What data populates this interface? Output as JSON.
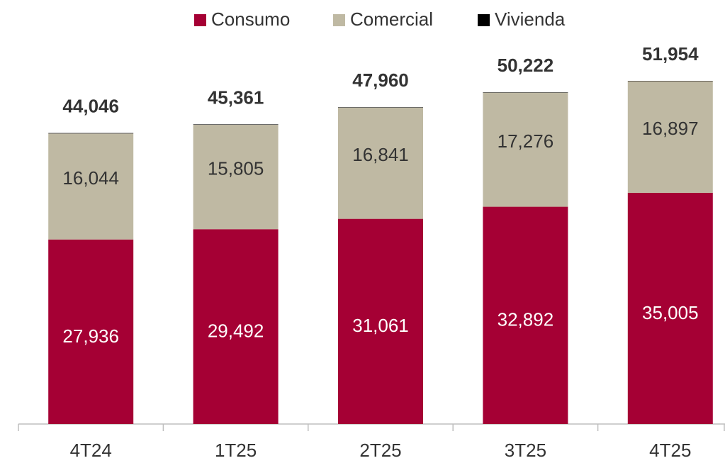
{
  "chart_data": {
    "type": "stacked_bar",
    "categories": [
      "4T24",
      "1T25",
      "2T25",
      "3T25",
      "4T25"
    ],
    "series": [
      {
        "name": "Consumo",
        "color": "#a50034",
        "label_color": "#ffffff",
        "values": [
          27936,
          29492,
          31061,
          32892,
          35005
        ],
        "value_labels": [
          "27,936",
          "29,492",
          "31,061",
          "32,892",
          "35,005"
        ]
      },
      {
        "name": "Comercial",
        "color": "#bfb9a3",
        "label_color": "#333333",
        "values": [
          16044,
          15805,
          16841,
          17276,
          16897
        ],
        "value_labels": [
          "16,044",
          "15,805",
          "16,841",
          "17,276",
          "16,897"
        ]
      },
      {
        "name": "Vivienda",
        "color": "#000000",
        "values": [
          66,
          64,
          58,
          54,
          52
        ]
      }
    ],
    "totals": {
      "values": [
        44046,
        45361,
        47960,
        50222,
        51954
      ],
      "value_labels": [
        "44,046",
        "45,361",
        "47,960",
        "50,222",
        "51,954"
      ]
    },
    "legend": "top"
  }
}
